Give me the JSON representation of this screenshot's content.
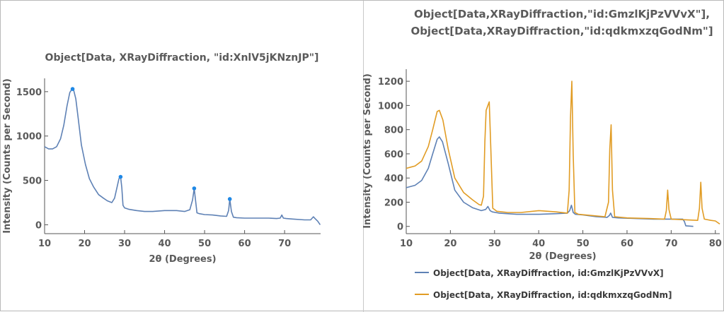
{
  "chart_data": [
    {
      "type": "line",
      "title": "Object[Data, XRayDiffraction, \"id:XnlV5jKNznJP\"]",
      "xlabel": "2θ (Degrees)",
      "ylabel": "Intensity (Counts per Second)",
      "xlim": [
        10,
        79
      ],
      "ylim": [
        -100,
        1650
      ],
      "xticks": [
        10,
        20,
        30,
        40,
        50,
        60,
        70
      ],
      "yticks": [
        0,
        500,
        1000,
        1500
      ],
      "colors": {
        "line": "#5e81b5",
        "peak": "#1f88e5"
      },
      "series": [
        {
          "x": [
            10,
            11,
            12,
            13,
            14,
            14.8,
            15.6,
            16.3,
            16.8,
            17.2,
            17.8,
            18.4,
            19.2,
            20.2,
            21.2,
            22.2,
            23.5,
            24.7,
            25.7,
            26.8,
            27.5,
            28.1,
            28.6,
            29,
            29.3,
            29.6,
            30,
            31,
            33,
            35,
            37,
            40,
            43,
            45,
            46.3,
            47,
            47.4,
            47.7,
            48.1,
            48.7,
            50,
            52,
            54,
            55.5,
            56,
            56.3,
            56.7,
            57.2,
            58,
            60,
            63,
            66,
            68,
            68.9,
            69.3,
            69.7,
            70.4,
            72,
            75,
            76.5,
            77.2,
            77.6,
            78.3,
            78.9
          ],
          "y": [
            880,
            855,
            855,
            880,
            970,
            1120,
            1340,
            1490,
            1525,
            1530,
            1420,
            1200,
            900,
            680,
            520,
            430,
            340,
            300,
            270,
            250,
            300,
            420,
            520,
            540,
            420,
            220,
            190,
            175,
            160,
            150,
            150,
            160,
            160,
            150,
            170,
            280,
            410,
            290,
            135,
            125,
            115,
            110,
            100,
            95,
            160,
            290,
            150,
            85,
            80,
            75,
            75,
            75,
            70,
            75,
            110,
            75,
            70,
            65,
            55,
            55,
            90,
            70,
            40,
            0
          ]
        }
      ],
      "markers": [
        {
          "x": 17.0,
          "y": 1530
        },
        {
          "x": 29.0,
          "y": 540
        },
        {
          "x": 47.4,
          "y": 410
        },
        {
          "x": 56.3,
          "y": 290
        }
      ]
    },
    {
      "type": "line",
      "title": "Object[Data,XRayDiffraction,\"id:GmzlKjPzVVvX\"], Object[Data,XRayDiffraction,\"id:qdkmxzqGodNm\"]",
      "title_lines": [
        "Object[Data,XRayDiffraction,\"id:GmzlKjPzVVvX\"],",
        "Object[Data,XRayDiffraction,\"id:qdkmxzqGodNm\"]"
      ],
      "xlabel": "2θ (Degrees)",
      "ylabel": "Intensity (Counts per Second)",
      "xlim": [
        10,
        81
      ],
      "ylim": [
        -60,
        1300
      ],
      "xticks": [
        10,
        20,
        30,
        40,
        50,
        60,
        70,
        80
      ],
      "yticks": [
        0,
        200,
        400,
        600,
        800,
        1000,
        1200
      ],
      "legend_position": "bottom",
      "series": [
        {
          "name": "Object[Data, XRayDiffraction, id:GmzlKjPzVVvX]",
          "color": "#5e81b5",
          "x": [
            10,
            12,
            13.5,
            15,
            16,
            17,
            17.5,
            18.2,
            19.5,
            21,
            23,
            25,
            27,
            28,
            28.5,
            29,
            29.5,
            31,
            35,
            40,
            44,
            46.5,
            47,
            47.4,
            47.8,
            48.3,
            50,
            53,
            55.5,
            56,
            56.3,
            56.7,
            58,
            62,
            66,
            70,
            72.6,
            73,
            73.3,
            75
          ],
          "y": [
            320,
            340,
            380,
            480,
            600,
            720,
            740,
            700,
            520,
            300,
            200,
            155,
            130,
            140,
            165,
            130,
            120,
            110,
            100,
            100,
            105,
            110,
            130,
            175,
            115,
            100,
            95,
            80,
            75,
            90,
            110,
            75,
            70,
            65,
            60,
            60,
            60,
            40,
            5,
            0
          ]
        },
        {
          "name": "Object[Data, XRayDiffraction, id:qdkmxzqGodNm]",
          "color": "#e19c24",
          "x": [
            10,
            11,
            12,
            13.5,
            15,
            16,
            17,
            17.5,
            18.3,
            19.5,
            21,
            23,
            25,
            26.5,
            27,
            27.5,
            27.8,
            28.1,
            28.5,
            28.8,
            29.1,
            29.6,
            30.5,
            33,
            36,
            40,
            44,
            46.5,
            46.9,
            47.2,
            47.5,
            47.8,
            48.2,
            49,
            52,
            55,
            55.8,
            56.1,
            56.4,
            56.7,
            57.2,
            60,
            65,
            68.5,
            68.9,
            69.2,
            69.5,
            70,
            73,
            76,
            76.4,
            76.7,
            77,
            77.5,
            79,
            80,
            81
          ],
          "y": [
            480,
            490,
            500,
            540,
            660,
            800,
            950,
            960,
            880,
            640,
            400,
            280,
            220,
            180,
            175,
            250,
            700,
            960,
            1000,
            1030,
            700,
            150,
            125,
            115,
            115,
            130,
            120,
            110,
            300,
            900,
            1200,
            600,
            115,
            100,
            90,
            80,
            200,
            640,
            840,
            300,
            80,
            70,
            65,
            60,
            130,
            300,
            140,
            60,
            55,
            50,
            150,
            365,
            150,
            60,
            50,
            45,
            20
          ]
        }
      ]
    }
  ]
}
